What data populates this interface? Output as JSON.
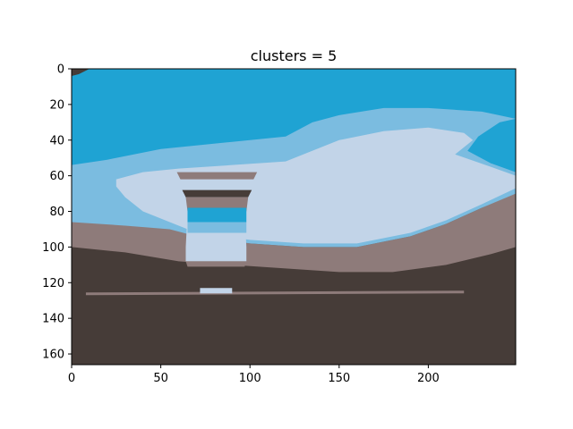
{
  "chart_data": {
    "type": "heatmap",
    "title": "clusters = 5",
    "xlabel": "",
    "ylabel": "",
    "xlim": [
      0,
      249
    ],
    "ylim": [
      166,
      0
    ],
    "x_ticks": [
      0,
      50,
      100,
      150,
      200
    ],
    "y_ticks": [
      0,
      20,
      40,
      60,
      80,
      100,
      120,
      140,
      160
    ],
    "grid": false,
    "cluster_colors": [
      "#1fa3d3",
      "#7bbce0",
      "#c2d4e8",
      "#8e7b7a",
      "#463c38"
    ],
    "regions": {
      "sky_lower_edge": [
        [
          0,
          54
        ],
        [
          20,
          51
        ],
        [
          50,
          45
        ],
        [
          90,
          41
        ],
        [
          120,
          38
        ],
        [
          135,
          30
        ],
        [
          150,
          26
        ],
        [
          175,
          22
        ],
        [
          200,
          22
        ],
        [
          230,
          24
        ],
        [
          249,
          28
        ]
      ],
      "pale_upper_edge": [
        [
          25,
          62
        ],
        [
          40,
          58
        ],
        [
          60,
          56
        ],
        [
          90,
          54
        ],
        [
          120,
          52
        ],
        [
          150,
          40
        ],
        [
          175,
          35
        ],
        [
          200,
          33
        ],
        [
          220,
          36
        ],
        [
          225,
          40
        ],
        [
          215,
          48
        ],
        [
          235,
          55
        ],
        [
          249,
          60
        ]
      ],
      "pale_lower_edge": [
        [
          25,
          66
        ],
        [
          30,
          72
        ],
        [
          40,
          80
        ],
        [
          55,
          86
        ],
        [
          70,
          92
        ],
        [
          100,
          96
        ],
        [
          130,
          98
        ],
        [
          160,
          98
        ],
        [
          190,
          92
        ],
        [
          210,
          85
        ],
        [
          230,
          76
        ],
        [
          249,
          67
        ]
      ],
      "dark_ground_edge": [
        [
          0,
          100
        ],
        [
          30,
          103
        ],
        [
          60,
          108
        ],
        [
          90,
          110
        ],
        [
          120,
          112
        ],
        [
          150,
          114
        ],
        [
          180,
          114
        ],
        [
          210,
          110
        ],
        [
          235,
          104
        ],
        [
          249,
          100
        ]
      ],
      "mauve_left_top": [
        [
          0,
          88
        ],
        [
          10,
          92
        ],
        [
          20,
          95
        ],
        [
          30,
          98
        ]
      ],
      "mauve_right_top": [
        [
          249,
          69
        ],
        [
          230,
          78
        ],
        [
          210,
          86
        ],
        [
          190,
          93
        ],
        [
          160,
          99
        ],
        [
          130,
          99
        ],
        [
          100,
          97
        ]
      ]
    }
  }
}
